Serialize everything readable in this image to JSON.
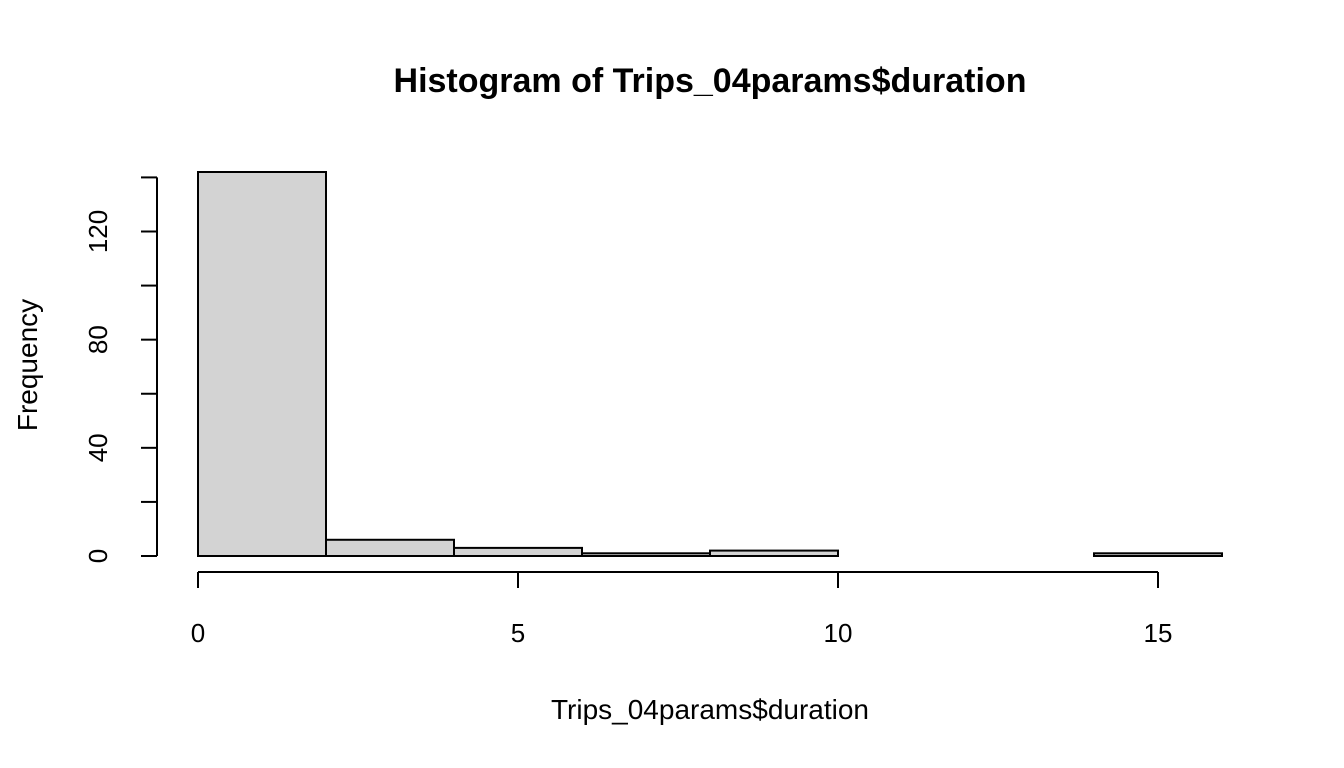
{
  "chart_data": {
    "type": "bar",
    "title": "Histogram of Trips_04params$duration",
    "xlabel": "Trips_04params$duration",
    "ylabel": "Frequency",
    "bins": [
      {
        "start": 0,
        "end": 2,
        "count": 142
      },
      {
        "start": 2,
        "end": 4,
        "count": 6
      },
      {
        "start": 4,
        "end": 6,
        "count": 3
      },
      {
        "start": 6,
        "end": 8,
        "count": 1
      },
      {
        "start": 8,
        "end": 10,
        "count": 2
      },
      {
        "start": 10,
        "end": 12,
        "count": 0
      },
      {
        "start": 12,
        "end": 14,
        "count": 0
      },
      {
        "start": 14,
        "end": 16,
        "count": 1
      }
    ],
    "xlim": [
      0,
      16
    ],
    "ylim": [
      0,
      142
    ],
    "x_ticks": [
      0,
      5,
      10,
      15
    ],
    "x_tick_labels": [
      "0",
      "5",
      "10",
      "15"
    ],
    "y_ticks": [
      0,
      20,
      40,
      60,
      80,
      100,
      120,
      140
    ],
    "y_tick_labels": [
      "0",
      "",
      "40",
      "",
      "80",
      "",
      "120",
      ""
    ],
    "colors": {
      "bar_fill": "#d3d3d3",
      "bar_stroke": "#000000"
    },
    "grid": false
  }
}
